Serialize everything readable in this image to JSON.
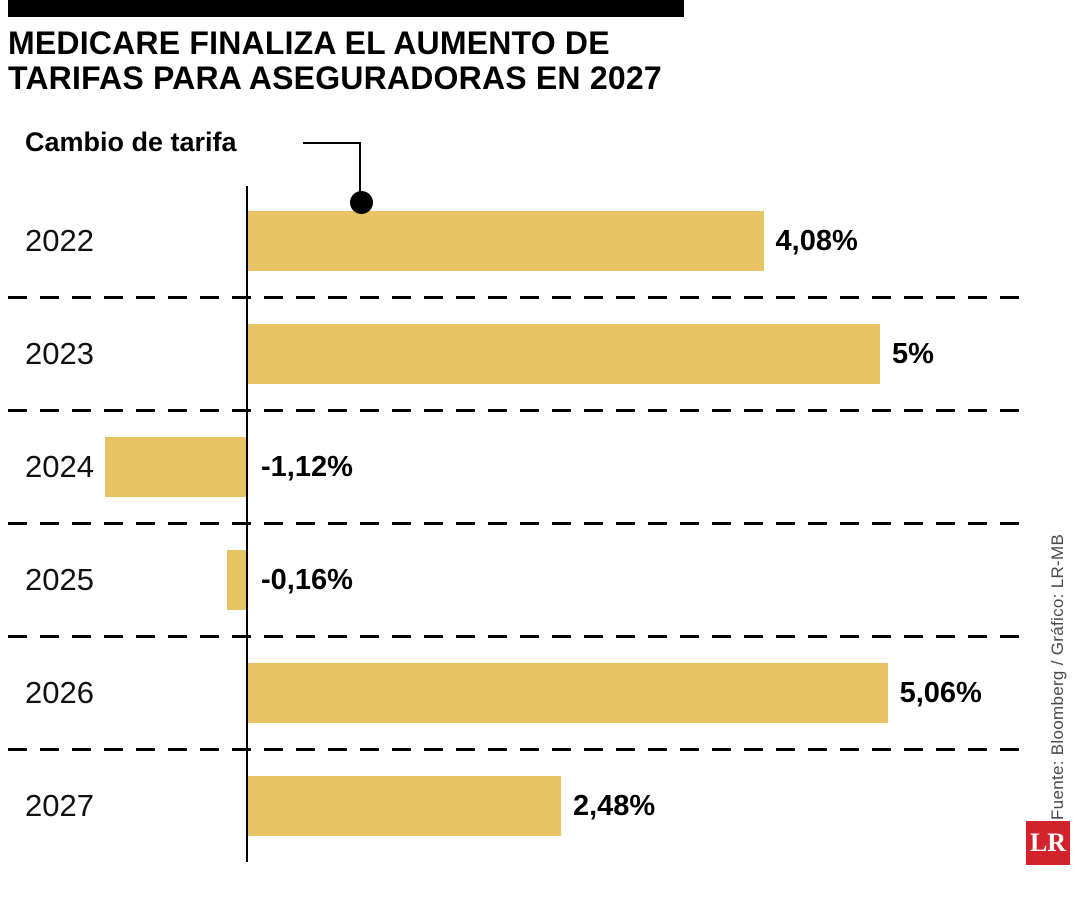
{
  "header": {
    "title": "MEDICARE FINALIZA EL AUMENTO DE\nTARIFAS PARA ASEGURADORAS EN 2027"
  },
  "legend": {
    "label": "Cambio de tarifa"
  },
  "chart_data": {
    "type": "bar",
    "orientation": "horizontal",
    "title": "Medicare finaliza el aumento de tarifas para aseguradoras en 2027",
    "series_label": "Cambio de tarifa",
    "categories": [
      "2022",
      "2023",
      "2024",
      "2025",
      "2026",
      "2027"
    ],
    "values": [
      4.08,
      5.0,
      -1.12,
      -0.16,
      5.06,
      2.48
    ],
    "value_labels": [
      "4,08%",
      "5%",
      "-1,12%",
      "-0,16%",
      "5,06%",
      "2,48%"
    ],
    "unit": "%",
    "xlim": [
      -1.5,
      5.5
    ],
    "bar_color": "#E8C364",
    "zero_axis": true,
    "grid": "dashed horizontal separators between categories",
    "legend_position": "top-left with callout dot on first bar"
  },
  "footer": {
    "source": "Fuente: Bloomberg / Gráfico: LR-MB",
    "logo_text": "LR",
    "logo_color": "#D2232A"
  }
}
